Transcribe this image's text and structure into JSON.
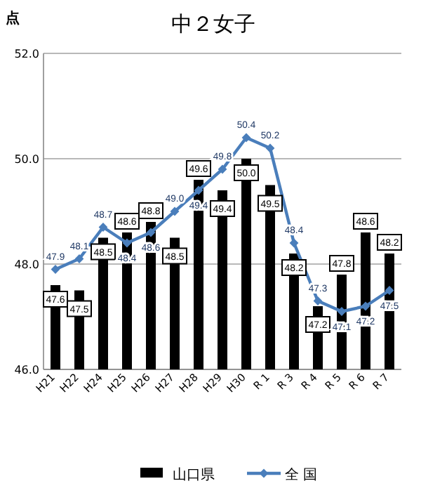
{
  "chart_data": {
    "type": "bar",
    "title": "中２女子",
    "ylabel": "点",
    "categories": [
      "H21",
      "H22",
      "H24",
      "H25",
      "H26",
      "H27",
      "H28",
      "H29",
      "H30",
      "R 1",
      "R 3",
      "R 4",
      "R 5",
      "R 6",
      "R 7"
    ],
    "series": [
      {
        "name": "山口県",
        "color": "#000000",
        "values": [
          47.6,
          47.5,
          48.5,
          48.6,
          48.8,
          48.5,
          49.6,
          49.4,
          50.0,
          49.5,
          48.2,
          47.2,
          47.8,
          48.6,
          48.2
        ],
        "value_labels": [
          "47.6",
          "47.5",
          "48.5",
          "48.6",
          "48.8",
          "48.5",
          "49.6",
          "49.4",
          "50.0",
          "49.5",
          "48.2",
          "47.2",
          "47.8",
          "48.6",
          "48.2"
        ]
      },
      {
        "name": "全 国",
        "type": "line",
        "color": "#4a7ebb",
        "marker": "diamond",
        "values": [
          47.9,
          48.1,
          48.7,
          48.4,
          48.6,
          49.0,
          49.4,
          49.8,
          50.4,
          50.2,
          48.4,
          47.3,
          47.1,
          47.2,
          47.5
        ],
        "value_labels": [
          "47.9",
          "48.1",
          "48.7",
          "48.4",
          "48.6",
          "49.0",
          "49.4",
          "49.8",
          "50.4",
          "50.2",
          "48.4",
          "47.3",
          "47.1",
          "47.2",
          "47.5"
        ]
      }
    ],
    "ylim": [
      46,
      52
    ],
    "yticks": [
      {
        "value": 46,
        "label": "46.0"
      },
      {
        "value": 48,
        "label": "48.0"
      },
      {
        "value": 50,
        "label": "50.0"
      },
      {
        "value": 52,
        "label": "52.0"
      }
    ],
    "grid": "y",
    "legend": "bottom",
    "data_labels": true
  }
}
